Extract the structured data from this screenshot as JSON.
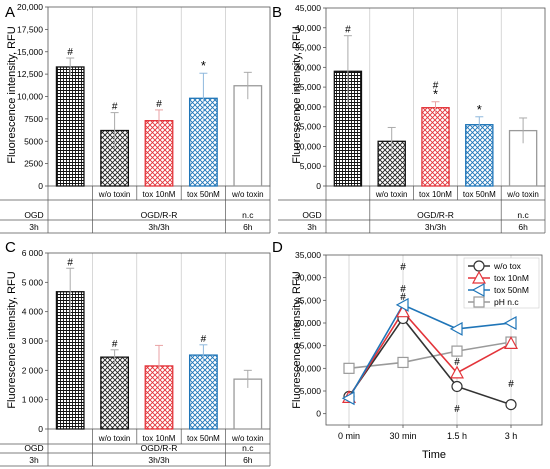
{
  "figure": {
    "colors": {
      "axis": "#555555",
      "grid": "#bdbdbd",
      "black": "#111111",
      "red": "#e3343a",
      "blue": "#1f75b8",
      "gray": "#9a9a9a",
      "err_gray": "#aaaaaa",
      "err_red": "#e9a2a4",
      "err_blue": "#8fb8dc"
    }
  },
  "chart_data": [
    {
      "panel": "A",
      "type": "bar",
      "ylabel": "Fluorescence intensity, RFU",
      "ylim": [
        0,
        20000
      ],
      "yticks": [
        "0",
        "2500",
        "5000",
        "7500",
        "10,000",
        "12,500",
        "15,000",
        "17,500",
        "20,000"
      ],
      "categories": [
        "",
        "w/o toxin",
        "tox 10nM",
        "tox 50nM",
        "w/o toxin"
      ],
      "values": [
        13300,
        6200,
        7300,
        9800,
        11200
      ],
      "errors": [
        1000,
        2000,
        1200,
        2800,
        1500
      ],
      "markers": [
        "#",
        "#",
        "#",
        "*",
        ""
      ],
      "styles": [
        "dense-black",
        "cross-black",
        "cross-red",
        "cross-blue",
        "empty-gray"
      ],
      "table_row1": [
        "OGD",
        "OGD/R-R",
        "n.c"
      ],
      "table_row2": [
        "3h",
        "3h/3h",
        "6h"
      ]
    },
    {
      "panel": "B",
      "type": "bar",
      "ylabel": "Fluorescence intensity, RFU",
      "ylim": [
        0,
        45000
      ],
      "yticks": [
        "0",
        "5,000",
        "10,000",
        "15,000",
        "20,000",
        "25,000",
        "30,000",
        "35,000",
        "40,000",
        "45,000"
      ],
      "categories": [
        "",
        "w/o toxin",
        "tox 10nM",
        "tox 50nM",
        "w/o toxin"
      ],
      "values": [
        29000,
        11300,
        19800,
        15500,
        14000
      ],
      "errors": [
        9000,
        3500,
        1500,
        2000,
        3200
      ],
      "markers": [
        "#",
        "",
        "#*",
        "*",
        ""
      ],
      "styles": [
        "dense-black",
        "cross-black",
        "cross-red",
        "cross-blue",
        "empty-gray"
      ],
      "table_row1": [
        "OGD",
        "OGD/R-R",
        "n.c"
      ],
      "table_row2": [
        "3h",
        "3h/3h",
        "6h"
      ]
    },
    {
      "panel": "C",
      "type": "bar",
      "ylabel": "Fluorescence intensity, RFU",
      "ylim": [
        0,
        6000
      ],
      "yticks": [
        "0",
        "1 000",
        "2 000",
        "3 000",
        "4 000",
        "5 000",
        "6 000"
      ],
      "categories": [
        "",
        "w/o toxin",
        "tox 10nM",
        "tox 50nM",
        "w/o toxin"
      ],
      "values": [
        4680,
        2450,
        2150,
        2520,
        1700
      ],
      "errors": [
        800,
        250,
        700,
        350,
        300
      ],
      "markers": [
        "#",
        "#",
        "",
        "#",
        ""
      ],
      "styles": [
        "dense-black",
        "cross-black",
        "cross-red",
        "cross-blue",
        "empty-gray"
      ],
      "table_row1": [
        "OGD",
        "OGD/R-R",
        "n.c"
      ],
      "table_row2": [
        "3h",
        "3h/3h",
        "6h"
      ]
    },
    {
      "panel": "D",
      "type": "line",
      "xlabel": "Time",
      "ylabel": "Fluorescence intensity, RFU",
      "ylim": [
        -2500,
        35000
      ],
      "yticks": [
        "0",
        "5,000",
        "10,000",
        "15,000",
        "20,000",
        "25,000",
        "30,000",
        "35,000"
      ],
      "categories": [
        "0 min",
        "30 min",
        "1.5 h",
        "3 h"
      ],
      "legend_position": "top-right",
      "series": [
        {
          "name": "w/o tox",
          "color": "#333333",
          "marker": "circle",
          "values": [
            3800,
            21000,
            6000,
            2000
          ],
          "labels": [
            "",
            "#",
            "#",
            "#"
          ]
        },
        {
          "name": "tox 10nM",
          "color": "#e3343a",
          "marker": "triangle-up",
          "values": [
            3600,
            22500,
            9000,
            15500
          ],
          "labels": [
            "",
            "#",
            "#",
            ""
          ]
        },
        {
          "name": "tox 50nM",
          "color": "#1f75b8",
          "marker": "triangle-left",
          "values": [
            3400,
            24000,
            18700,
            20000
          ],
          "labels": [
            "",
            "#",
            "",
            ""
          ]
        },
        {
          "name": "pH n.c",
          "color": "#9a9a9a",
          "marker": "square",
          "values": [
            10000,
            11300,
            13800,
            15800
          ],
          "labels": [
            "",
            "",
            "",
            ""
          ]
        }
      ]
    }
  ]
}
